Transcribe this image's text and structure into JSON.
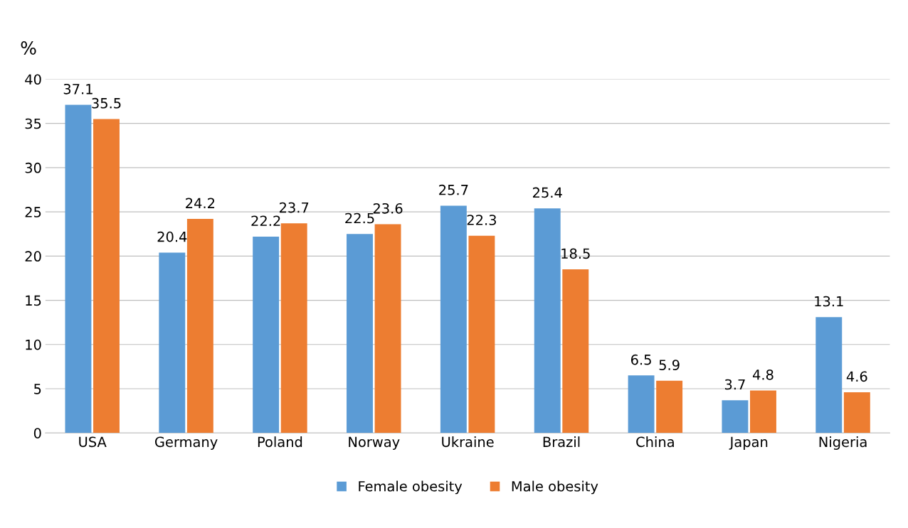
{
  "chart_data": {
    "type": "bar",
    "ylabel": "%",
    "categories": [
      "USA",
      "Germany",
      "Poland",
      "Norway",
      "Ukraine",
      "Brazil",
      "China",
      "Japan",
      "Nigeria"
    ],
    "series": [
      {
        "name": "Female obesity",
        "color": "#5b9bd5",
        "values": [
          37.1,
          20.4,
          22.2,
          22.5,
          25.7,
          25.4,
          6.5,
          3.7,
          13.1
        ]
      },
      {
        "name": "Male obesity",
        "color": "#ed7d31",
        "values": [
          35.5,
          24.2,
          23.7,
          23.6,
          22.3,
          18.5,
          5.9,
          4.8,
          4.6
        ]
      }
    ],
    "ylim": [
      0,
      40
    ],
    "yticks": [
      0,
      5,
      10,
      15,
      20,
      25,
      30,
      35,
      40
    ],
    "grid": "y",
    "legend": "bottom",
    "data_labels": true
  }
}
